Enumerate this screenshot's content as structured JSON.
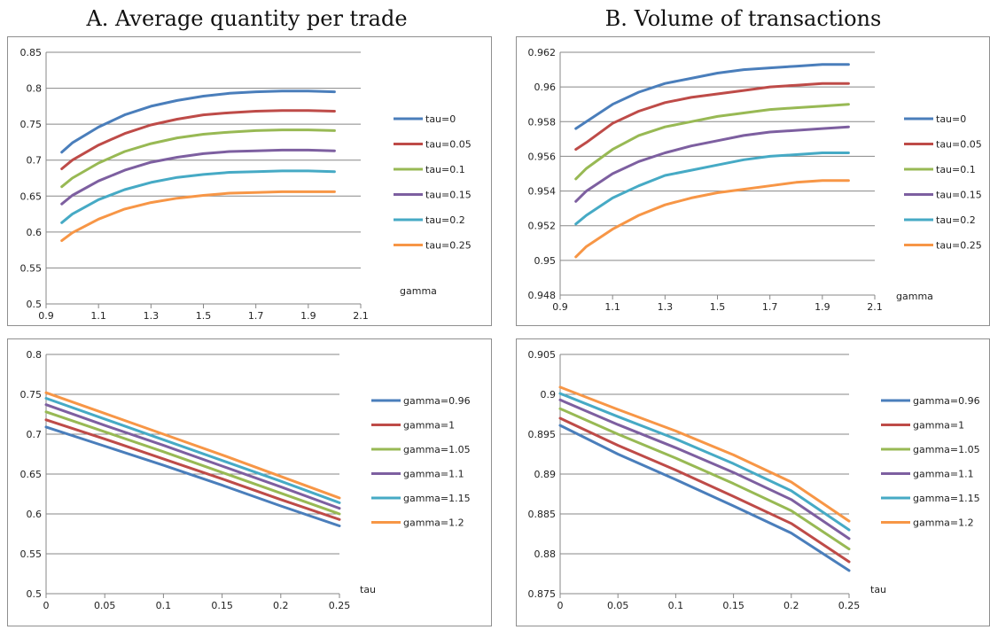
{
  "titles": {
    "a": "A. Average quantity per trade",
    "b": "B. Volume of transactions"
  },
  "chart_data": [
    {
      "type": "line",
      "title": "",
      "xlabel": "gamma",
      "ylabel": "",
      "xlim": [
        0.9,
        2.1
      ],
      "ylim": [
        0.5,
        0.85
      ],
      "xticks": [
        0.9,
        1.1,
        1.3,
        1.5,
        1.7,
        1.9,
        2.1
      ],
      "xtick_labels": [
        "0.9",
        "1.1",
        "1.3",
        "1.5",
        "1.7",
        "1.9",
        "2.1"
      ],
      "yticks": [
        0.5,
        0.55,
        0.6,
        0.65,
        0.7,
        0.75,
        0.8,
        0.85
      ],
      "ytick_labels": [
        "0.5",
        "0.55",
        "0.6",
        "0.65",
        "0.7",
        "0.75",
        "0.8",
        "0.85"
      ],
      "grid": "horizontal",
      "legend": "right",
      "x": [
        0.96,
        1.0,
        1.1,
        1.2,
        1.3,
        1.4,
        1.5,
        1.6,
        1.7,
        1.8,
        1.9,
        2.0
      ],
      "series": [
        {
          "name": "tau=0",
          "color": "#4a7ebb",
          "values": [
            0.711,
            0.724,
            0.746,
            0.763,
            0.775,
            0.783,
            0.789,
            0.793,
            0.795,
            0.796,
            0.796,
            0.795
          ]
        },
        {
          "name": "tau=0.05",
          "color": "#be4b48",
          "values": [
            0.688,
            0.7,
            0.721,
            0.737,
            0.749,
            0.757,
            0.763,
            0.766,
            0.768,
            0.769,
            0.769,
            0.768
          ]
        },
        {
          "name": "tau=0.1",
          "color": "#98b954",
          "values": [
            0.663,
            0.675,
            0.696,
            0.712,
            0.723,
            0.731,
            0.736,
            0.739,
            0.741,
            0.742,
            0.742,
            0.741
          ]
        },
        {
          "name": "tau=0.15",
          "color": "#7d5fa0",
          "values": [
            0.639,
            0.651,
            0.671,
            0.686,
            0.697,
            0.704,
            0.709,
            0.712,
            0.713,
            0.714,
            0.714,
            0.713
          ]
        },
        {
          "name": "tau=0.2",
          "color": "#46aac5",
          "values": [
            0.613,
            0.625,
            0.645,
            0.659,
            0.669,
            0.676,
            0.68,
            0.683,
            0.684,
            0.685,
            0.685,
            0.684
          ]
        },
        {
          "name": "tau=0.25",
          "color": "#f79646",
          "values": [
            0.588,
            0.599,
            0.618,
            0.632,
            0.641,
            0.647,
            0.651,
            0.654,
            0.655,
            0.656,
            0.656,
            0.656
          ]
        }
      ]
    },
    {
      "type": "line",
      "title": "",
      "xlabel": "gamma",
      "ylabel": "",
      "xlim": [
        0.9,
        2.1
      ],
      "ylim": [
        0.948,
        0.962
      ],
      "xticks": [
        0.9,
        1.1,
        1.3,
        1.5,
        1.7,
        1.9,
        2.1
      ],
      "xtick_labels": [
        "0.9",
        "1.1",
        "1.3",
        "1.5",
        "1.7",
        "1.9",
        "2.1"
      ],
      "yticks": [
        0.948,
        0.95,
        0.952,
        0.954,
        0.956,
        0.958,
        0.96,
        0.962
      ],
      "ytick_labels": [
        "0.948",
        "0.95",
        "0.952",
        "0.954",
        "0.956",
        "0.958",
        "0.96",
        "0.962"
      ],
      "grid": "horizontal",
      "legend": "right",
      "x": [
        0.96,
        1.0,
        1.1,
        1.2,
        1.3,
        1.4,
        1.5,
        1.6,
        1.7,
        1.8,
        1.9,
        2.0
      ],
      "series": [
        {
          "name": "tau=0",
          "color": "#4a7ebb",
          "values": [
            0.9576,
            0.958,
            0.959,
            0.9597,
            0.9602,
            0.9605,
            0.9608,
            0.961,
            0.9611,
            0.9612,
            0.9613,
            0.9613
          ]
        },
        {
          "name": "tau=0.05",
          "color": "#be4b48",
          "values": [
            0.9564,
            0.9568,
            0.9579,
            0.9586,
            0.9591,
            0.9594,
            0.9596,
            0.9598,
            0.96,
            0.9601,
            0.9602,
            0.9602
          ]
        },
        {
          "name": "tau=0.1",
          "color": "#98b954",
          "values": [
            0.9547,
            0.9553,
            0.9564,
            0.9572,
            0.9577,
            0.958,
            0.9583,
            0.9585,
            0.9587,
            0.9588,
            0.9589,
            0.959
          ]
        },
        {
          "name": "tau=0.15",
          "color": "#7d5fa0",
          "values": [
            0.9534,
            0.954,
            0.955,
            0.9557,
            0.9562,
            0.9566,
            0.9569,
            0.9572,
            0.9574,
            0.9575,
            0.9576,
            0.9577
          ]
        },
        {
          "name": "tau=0.2",
          "color": "#46aac5",
          "values": [
            0.9521,
            0.9526,
            0.9536,
            0.9543,
            0.9549,
            0.9552,
            0.9555,
            0.9558,
            0.956,
            0.9561,
            0.9562,
            0.9562
          ]
        },
        {
          "name": "tau=0.25",
          "color": "#f79646",
          "values": [
            0.9502,
            0.9508,
            0.9518,
            0.9526,
            0.9532,
            0.9536,
            0.9539,
            0.9541,
            0.9543,
            0.9545,
            0.9546,
            0.9546
          ]
        }
      ]
    },
    {
      "type": "line",
      "title": "",
      "xlabel": "tau",
      "ylabel": "",
      "xlim": [
        0,
        0.25
      ],
      "ylim": [
        0.5,
        0.8
      ],
      "xticks": [
        0,
        0.05,
        0.1,
        0.15,
        0.2,
        0.25
      ],
      "xtick_labels": [
        "0",
        "0.05",
        "0.1",
        "0.15",
        "0.2",
        "0.25"
      ],
      "yticks": [
        0.5,
        0.55,
        0.6,
        0.65,
        0.7,
        0.75,
        0.8
      ],
      "ytick_labels": [
        "0.5",
        "0.55",
        "0.6",
        "0.65",
        "0.7",
        "0.75",
        "0.8"
      ],
      "grid": "horizontal",
      "legend": "right",
      "x": [
        0,
        0.05,
        0.1,
        0.15,
        0.2,
        0.25
      ],
      "series": [
        {
          "name": "gamma=0.96",
          "color": "#4a7ebb",
          "values": [
            0.709,
            0.685,
            0.661,
            0.636,
            0.61,
            0.585
          ]
        },
        {
          "name": "gamma=1",
          "color": "#be4b48",
          "values": [
            0.718,
            0.694,
            0.669,
            0.644,
            0.618,
            0.593
          ]
        },
        {
          "name": "gamma=1.05",
          "color": "#98b954",
          "values": [
            0.728,
            0.703,
            0.678,
            0.652,
            0.626,
            0.6
          ]
        },
        {
          "name": "gamma=1.1",
          "color": "#7d5fa0",
          "values": [
            0.737,
            0.711,
            0.686,
            0.66,
            0.634,
            0.607
          ]
        },
        {
          "name": "gamma=1.15",
          "color": "#46aac5",
          "values": [
            0.745,
            0.719,
            0.693,
            0.667,
            0.641,
            0.614
          ]
        },
        {
          "name": "gamma=1.2",
          "color": "#f79646",
          "values": [
            0.752,
            0.726,
            0.7,
            0.674,
            0.647,
            0.62
          ]
        }
      ]
    },
    {
      "type": "line",
      "title": "",
      "xlabel": "tau",
      "ylabel": "",
      "xlim": [
        0,
        0.25
      ],
      "ylim": [
        0.875,
        0.905
      ],
      "xticks": [
        0,
        0.05,
        0.1,
        0.15,
        0.2,
        0.25
      ],
      "xtick_labels": [
        "0",
        "0.05",
        "0.1",
        "0.15",
        "0.2",
        "0.25"
      ],
      "yticks": [
        0.875,
        0.88,
        0.885,
        0.89,
        0.895,
        0.9,
        0.905
      ],
      "ytick_labels": [
        "0.875",
        "0.88",
        "0.885",
        "0.89",
        "0.895",
        "0.9",
        "0.905"
      ],
      "grid": "horizontal",
      "legend": "right",
      "x": [
        0,
        0.05,
        0.1,
        0.15,
        0.2,
        0.25
      ],
      "series": [
        {
          "name": "gamma=0.96",
          "color": "#4a7ebb",
          "values": [
            0.8961,
            0.8925,
            0.8893,
            0.886,
            0.8826,
            0.8779
          ]
        },
        {
          "name": "gamma=1",
          "color": "#be4b48",
          "values": [
            0.897,
            0.8936,
            0.8905,
            0.8872,
            0.8838,
            0.879
          ]
        },
        {
          "name": "gamma=1.05",
          "color": "#98b954",
          "values": [
            0.8982,
            0.895,
            0.892,
            0.8888,
            0.8854,
            0.8806
          ]
        },
        {
          "name": "gamma=1.1",
          "color": "#7d5fa0",
          "values": [
            0.8993,
            0.8962,
            0.8933,
            0.8902,
            0.8868,
            0.8819
          ]
        },
        {
          "name": "gamma=1.15",
          "color": "#46aac5",
          "values": [
            0.9001,
            0.8972,
            0.8944,
            0.8913,
            0.8879,
            0.883
          ]
        },
        {
          "name": "gamma=1.2",
          "color": "#f79646",
          "values": [
            0.9009,
            0.8981,
            0.8954,
            0.8924,
            0.889,
            0.8841
          ]
        }
      ]
    }
  ]
}
